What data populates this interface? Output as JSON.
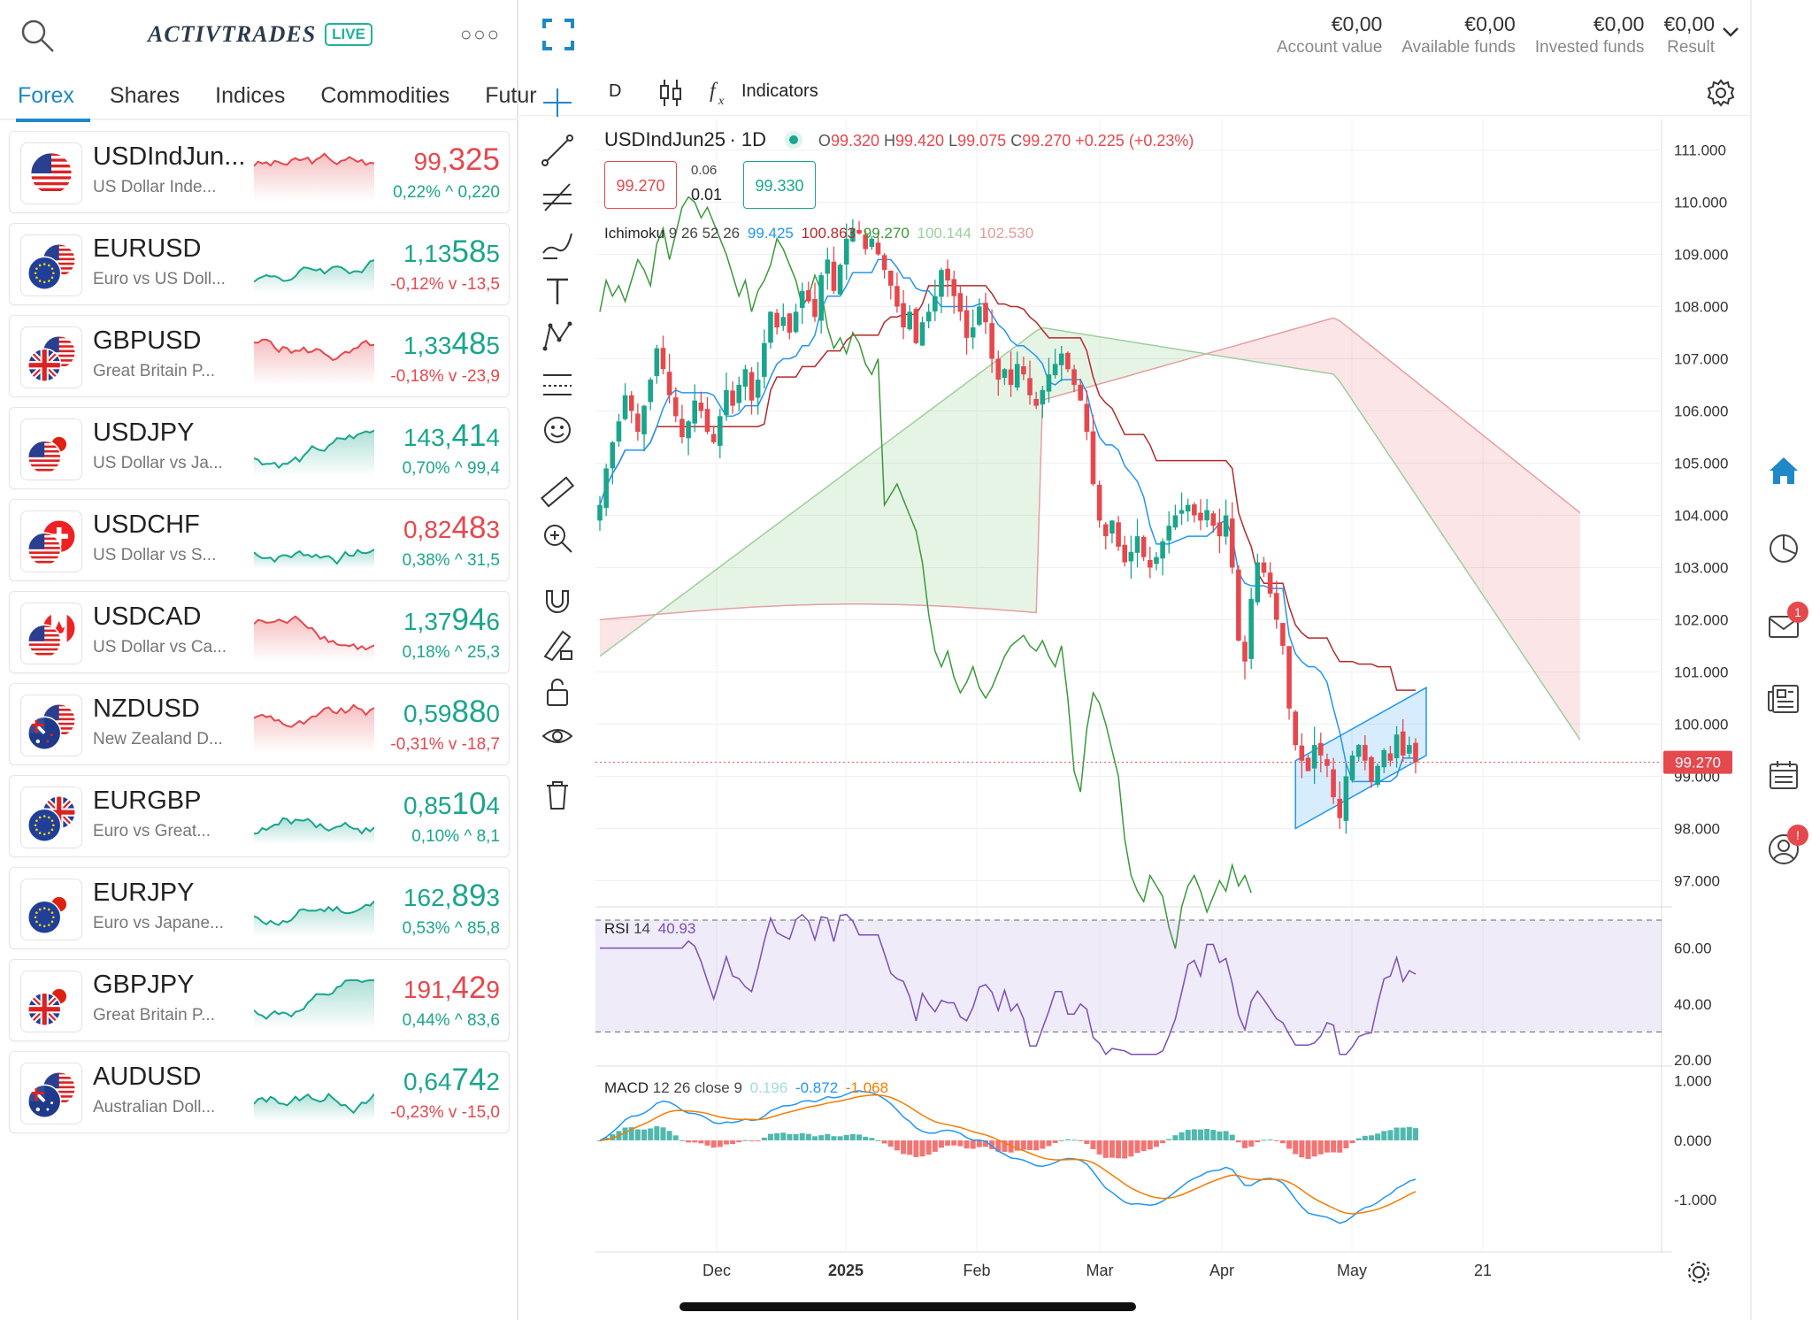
{
  "brand": {
    "name": "ACTIVTRADES",
    "badge": "LIVE"
  },
  "tabs": [
    {
      "label": "Forex",
      "active": true
    },
    {
      "label": "Shares"
    },
    {
      "label": "Indices"
    },
    {
      "label": "Commodities"
    },
    {
      "label": "Futur"
    }
  ],
  "instruments": [
    {
      "symbol": "USDIndJun...",
      "desc": "US Dollar Inde...",
      "price_main": "99,",
      "price_big": "325",
      "change": "0,22% ^ 0,220",
      "price_dir": "down",
      "change_dir": "up",
      "flags": [
        "us"
      ],
      "spark_dir": "down"
    },
    {
      "symbol": "EURUSD",
      "desc": "Euro vs US Doll...",
      "price_main": "1,13",
      "price_big": "58",
      "price_tail": "5",
      "change": "-0,12% v -13,5",
      "price_dir": "up",
      "change_dir": "down",
      "flags": [
        "eu",
        "us"
      ],
      "spark_dir": "up"
    },
    {
      "symbol": "GBPUSD",
      "desc": "Great Britain P...",
      "price_main": "1,33",
      "price_big": "48",
      "price_tail": "5",
      "change": "-0,18% v -23,9",
      "price_dir": "up",
      "change_dir": "down",
      "flags": [
        "gb",
        "us"
      ],
      "spark_dir": "down"
    },
    {
      "symbol": "USDJPY",
      "desc": "US Dollar vs Ja...",
      "price_main": "143,",
      "price_big": "41",
      "price_tail": "4",
      "change": "0,70% ^ 99,4",
      "price_dir": "up",
      "change_dir": "up",
      "flags": [
        "us",
        "jp"
      ],
      "spark_dir": "up"
    },
    {
      "symbol": "USDCHF",
      "desc": "US Dollar vs S...",
      "price_main": "0,82",
      "price_big": "48",
      "price_tail": "3",
      "change": "0,38% ^ 31,5",
      "price_dir": "down",
      "change_dir": "up",
      "flags": [
        "us",
        "ch"
      ],
      "spark_dir": "up"
    },
    {
      "symbol": "USDCAD",
      "desc": "US Dollar vs Ca...",
      "price_main": "1,37",
      "price_big": "94",
      "price_tail": "6",
      "change": "0,18% ^ 25,3",
      "price_dir": "up",
      "change_dir": "up",
      "flags": [
        "us",
        "ca"
      ],
      "spark_dir": "down"
    },
    {
      "symbol": "NZDUSD",
      "desc": "New Zealand D...",
      "price_main": "0,59",
      "price_big": "88",
      "price_tail": "0",
      "change": "-0,31% v -18,7",
      "price_dir": "up",
      "change_dir": "down",
      "flags": [
        "nz",
        "us"
      ],
      "spark_dir": "down"
    },
    {
      "symbol": "EURGBP",
      "desc": "Euro vs Great...",
      "price_main": "0,85",
      "price_big": "10",
      "price_tail": "4",
      "change": "0,10% ^ 8,1",
      "price_dir": "up",
      "change_dir": "up",
      "flags": [
        "eu",
        "gb"
      ],
      "spark_dir": "up"
    },
    {
      "symbol": "EURJPY",
      "desc": "Euro vs Japane...",
      "price_main": "162,",
      "price_big": "89",
      "price_tail": "3",
      "change": "0,53% ^ 85,8",
      "price_dir": "up",
      "change_dir": "up",
      "flags": [
        "eu",
        "jp"
      ],
      "spark_dir": "up"
    },
    {
      "symbol": "GBPJPY",
      "desc": "Great Britain P...",
      "price_main": "191,",
      "price_big": "42",
      "price_tail": "9",
      "change": "0,44% ^ 83,6",
      "price_dir": "down",
      "change_dir": "up",
      "flags": [
        "gb",
        "jp"
      ],
      "spark_dir": "up"
    },
    {
      "symbol": "AUDUSD",
      "desc": "Australian Doll...",
      "price_main": "0,64",
      "price_big": "74",
      "price_tail": "2",
      "change": "-0,23% v -15,0",
      "price_dir": "up",
      "change_dir": "down",
      "flags": [
        "au",
        "us"
      ],
      "spark_dir": "up"
    }
  ],
  "account": [
    {
      "value": "€0,00",
      "label": "Account value"
    },
    {
      "value": "€0,00",
      "label": "Available funds"
    },
    {
      "value": "€0,00",
      "label": "Invested funds"
    },
    {
      "value": "€0,00",
      "label": "Result"
    }
  ],
  "chart_toolbar": {
    "interval": "D",
    "indicators_label": "Indicators"
  },
  "chart_header": {
    "symbol": "USDIndJun25",
    "timeframe": "1D",
    "open_label": "O",
    "open": "99.320",
    "high_label": "H",
    "high": "99.420",
    "low_label": "L",
    "low": "99.075",
    "close_label": "C",
    "close": "99.270",
    "change": "+0.225 (+0.23%)",
    "bid": "99.270",
    "spread_top": "0.06",
    "spread": "0.01",
    "ask": "99.330"
  },
  "ichimoku": {
    "label": "Ichimoku",
    "params": "9 26 52 26",
    "v1": "99.425",
    "v2": "100.863",
    "v3": "99.270",
    "v4": "100.144",
    "v5": "102.530"
  },
  "rsi": {
    "label": "RSI",
    "period": "14",
    "value": "40.93"
  },
  "macd": {
    "label": "MACD",
    "params": "12 26 close 9",
    "hist": "0.196",
    "macd": "-0.872",
    "signal": "-1.068"
  },
  "current_price_tag": "99.270",
  "colors": {
    "up": "#1aa58c",
    "down": "#e5484d",
    "accent": "#1e88c8",
    "ichimoku_green": "#3a9a3a",
    "ichimoku_red": "#b22a2a",
    "rsi": "#7b4fb5",
    "macd": "#2196f3",
    "signal": "#f57c00"
  },
  "chart_data": {
    "type": "candlestick",
    "title": "USDIndJun25 1D",
    "x_ticks": [
      "Dec",
      "2025",
      "Feb",
      "Mar",
      "Apr",
      "May",
      "21"
    ],
    "y_ticks": [
      "111.000",
      "110.000",
      "109.000",
      "108.000",
      "107.000",
      "106.000",
      "105.000",
      "104.000",
      "103.000",
      "102.000",
      "101.000",
      "100.000",
      "99.000",
      "98.000",
      "97.000"
    ],
    "ylim": [
      96.5,
      111.5
    ],
    "close": [
      104.2,
      104.9,
      105.4,
      105.8,
      106.3,
      106.0,
      105.6,
      106.1,
      106.6,
      107.2,
      106.8,
      106.3,
      105.9,
      105.5,
      105.8,
      106.2,
      106.0,
      105.6,
      105.4,
      105.9,
      106.4,
      106.1,
      106.5,
      106.8,
      106.2,
      106.6,
      107.3,
      107.9,
      107.6,
      107.8,
      107.5,
      107.9,
      108.3,
      108.1,
      107.8,
      108.6,
      108.9,
      108.3,
      108.8,
      109.3,
      109.5,
      109.4,
      109.1,
      109.3,
      109.0,
      108.7,
      108.4,
      108.0,
      107.6,
      107.9,
      107.3,
      107.7,
      107.9,
      108.2,
      108.7,
      108.5,
      108.2,
      107.9,
      107.4,
      107.6,
      108.0,
      107.7,
      107.0,
      106.6,
      106.8,
      106.5,
      106.9,
      106.7,
      106.3,
      106.1,
      106.4,
      106.7,
      106.9,
      107.1,
      106.8,
      106.5,
      106.2,
      105.6,
      104.6,
      103.9,
      103.6,
      103.9,
      103.4,
      103.1,
      103.3,
      103.6,
      103.2,
      103.0,
      103.2,
      103.5,
      103.8,
      104.0,
      104.1,
      104.2,
      104.0,
      103.9,
      104.1,
      103.8,
      103.6,
      104.0,
      103.0,
      101.6,
      101.2,
      102.4,
      103.1,
      102.9,
      102.5,
      102.0,
      101.5,
      100.3,
      99.6,
      99.3,
      99.1,
      99.6,
      99.4,
      99.2,
      98.6,
      98.2,
      99.0,
      99.4,
      99.6,
      99.3,
      98.9,
      99.2,
      99.5,
      99.3,
      99.8,
      99.4,
      99.6,
      99.27
    ],
    "rsi": {
      "ylim": [
        20,
        70
      ],
      "ticks": [
        "60.00",
        "40.00",
        "20.00"
      ],
      "bands": [
        70,
        30
      ]
    },
    "macd": {
      "ticks": [
        "1.000",
        "0.000",
        "-1.000"
      ],
      "ylim": [
        -1.8,
        1.1
      ]
    }
  }
}
